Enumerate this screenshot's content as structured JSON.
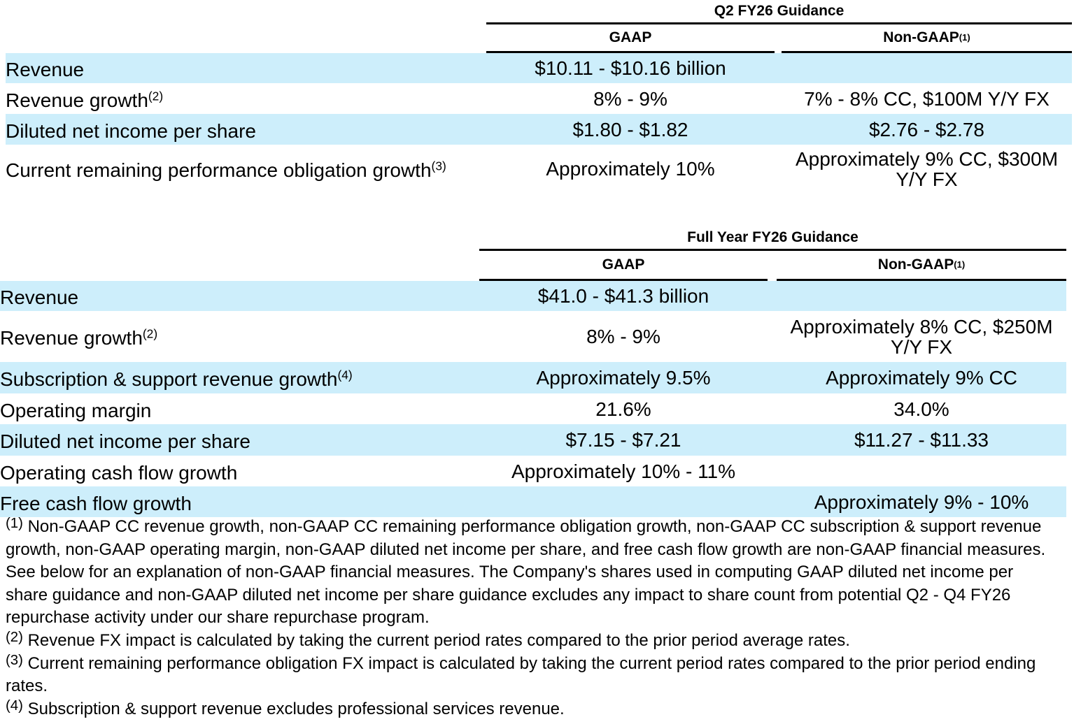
{
  "tables": [
    {
      "title": "Q2 FY26 Guidance",
      "columns": [
        {
          "label": "GAAP"
        },
        {
          "label": "Non-GAAP",
          "note": "(1)"
        }
      ],
      "rows": [
        {
          "label": "Revenue",
          "gaap": "$10.11 - $10.16 billion"
        },
        {
          "label": "Revenue growth",
          "note": "(2)",
          "gaap": "8% - 9%",
          "non_gaap": "7% - 8% CC, $100M Y/Y FX"
        },
        {
          "label": "Diluted net income per share",
          "gaap": "$1.80 - $1.82",
          "non_gaap": "$2.76 - $2.78"
        },
        {
          "label": "Current remaining performance obligation growth",
          "note": "(3)",
          "gaap": "Approximately 10%",
          "non_gaap": "Approximately 9% CC, $300M Y/Y FX"
        }
      ]
    },
    {
      "title": "Full Year FY26 Guidance",
      "columns": [
        {
          "label": "GAAP"
        },
        {
          "label": "Non-GAAP",
          "note": "(1)"
        }
      ],
      "rows": [
        {
          "label": "Revenue",
          "gaap": "$41.0 - $41.3 billion"
        },
        {
          "label": "Revenue growth",
          "note": "(2)",
          "gaap": "8% - 9%",
          "non_gaap": "Approximately 8% CC, $250M Y/Y FX"
        },
        {
          "label": "Subscription & support revenue growth",
          "note": "(4)",
          "gaap": "Approximately 9.5%",
          "non_gaap": "Approximately 9% CC"
        },
        {
          "label": "Operating margin",
          "gaap": "21.6%",
          "non_gaap": "34.0%"
        },
        {
          "label": "Diluted net income per share",
          "gaap": "$7.15 - $7.21",
          "non_gaap": "$11.27 - $11.33"
        },
        {
          "label": "Operating cash flow growth",
          "gaap": "Approximately 10% - 11%"
        },
        {
          "label": "Free cash flow growth",
          "non_gaap": "Approximately 9% - 10%"
        }
      ]
    }
  ],
  "footnotes": [
    {
      "marker": "(1)",
      "text": "Non-GAAP CC revenue growth, non-GAAP CC remaining performance obligation growth, non-GAAP CC subscription & support revenue growth, non-GAAP operating margin, non-GAAP diluted net income per share, and free cash flow growth are non-GAAP financial measures. See below for an explanation of non-GAAP financial measures. The Company's shares used in computing GAAP diluted net income per share guidance and non-GAAP diluted net income per share guidance excludes any impact to share count from potential Q2 - Q4 FY26 repurchase activity under our share repurchase program."
    },
    {
      "marker": "(2)",
      "text": "Revenue FX impact is calculated by taking the current period rates compared to the prior period average rates."
    },
    {
      "marker": "(3)",
      "text": "Current remaining performance obligation FX impact is calculated by taking the current period rates compared to the prior period ending rates."
    },
    {
      "marker": "(4)",
      "text": "Subscription & support revenue excludes professional services revenue."
    }
  ]
}
